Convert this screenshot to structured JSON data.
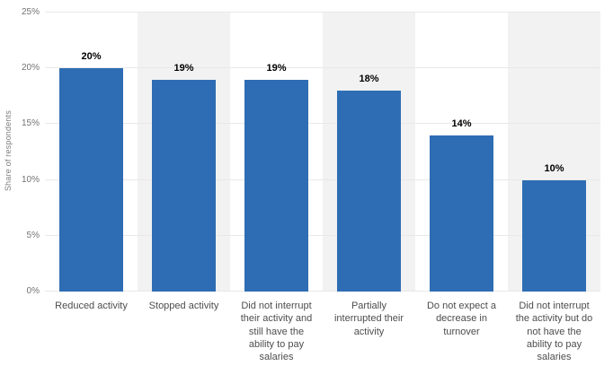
{
  "chart_data": {
    "type": "bar",
    "title": "",
    "ylabel": "Share of respondents",
    "xlabel": "",
    "ylim": [
      0,
      25
    ],
    "yticks": [
      "0%",
      "5%",
      "10%",
      "15%",
      "20%",
      "25%"
    ],
    "categories": [
      "Reduced activity",
      "Stopped activity",
      "Did not interrupt their activity and still have the ability to pay salaries",
      "Partially interrupted their activity",
      "Do not expect a decrease in turnover",
      "Did not interrupt the activity but do not have the ability to pay salaries"
    ],
    "values": [
      20,
      19,
      19,
      18,
      14,
      10
    ],
    "value_labels": [
      "20%",
      "19%",
      "19%",
      "18%",
      "14%",
      "10%"
    ],
    "grid": true,
    "legend": "none",
    "colors": {
      "bar": "#2e6db4",
      "band": "#f2f2f2",
      "gridline": "#e8e8e8",
      "tick_text": "#737373",
      "category_text": "#4d4d4d",
      "value_text": "#000000",
      "axis_title_text": "#808080"
    }
  }
}
